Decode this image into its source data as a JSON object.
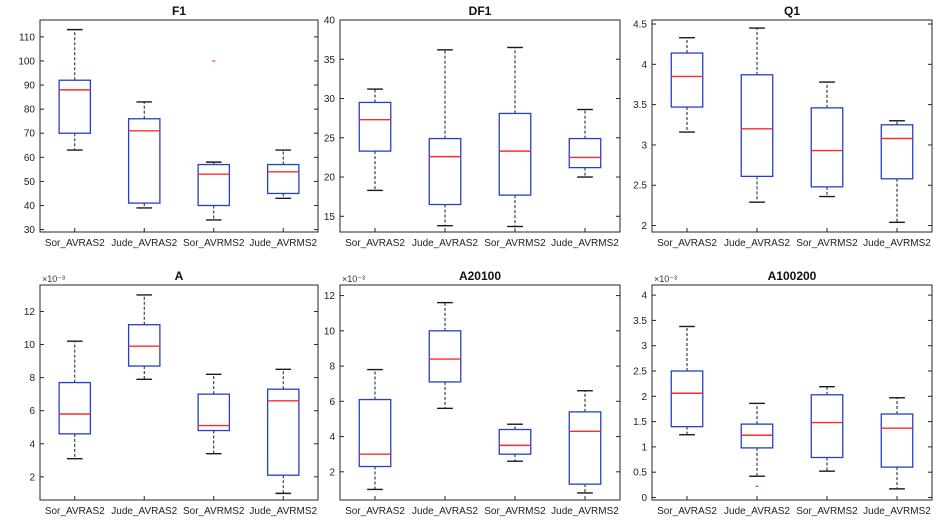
{
  "chart_data": [
    {
      "type": "box",
      "title": "F1",
      "categories": [
        "Sor_AVRAS2",
        "Jude_AVRAS2",
        "Sor_AVRMS2",
        "Jude_AVRMS2"
      ],
      "ylim": [
        29,
        117
      ],
      "yticks": [
        30,
        40,
        50,
        60,
        70,
        80,
        90,
        100,
        110
      ],
      "ytick_labels": [
        "30",
        "40",
        "50",
        "60",
        "70",
        "80",
        "90",
        "100",
        "110"
      ],
      "exponent_label": "",
      "boxes": [
        {
          "min": 63,
          "q1": 70,
          "median": 88,
          "q3": 92,
          "max": 113,
          "outliers": []
        },
        {
          "min": 39,
          "q1": 41,
          "median": 71,
          "q3": 76,
          "max": 83,
          "outliers": []
        },
        {
          "min": 34,
          "q1": 40,
          "median": 53,
          "q3": 57,
          "max": 58,
          "outliers": [
            100
          ]
        },
        {
          "min": 43,
          "q1": 45,
          "median": 54,
          "q3": 57,
          "max": 63,
          "outliers": []
        }
      ]
    },
    {
      "type": "box",
      "title": "DF1",
      "categories": [
        "Sor_AVRAS2",
        "Jude_AVRAS2",
        "Sor_AVRMS2",
        "Jude_AVRMS2"
      ],
      "ylim": [
        13,
        40
      ],
      "yticks": [
        15,
        20,
        25,
        30,
        35,
        40
      ],
      "ytick_labels": [
        "15",
        "20",
        "25",
        "30",
        "35",
        "40"
      ],
      "exponent_label": "",
      "boxes": [
        {
          "min": 18.3,
          "q1": 23.3,
          "median": 27.3,
          "q3": 29.5,
          "max": 31.2,
          "outliers": []
        },
        {
          "min": 13.8,
          "q1": 16.5,
          "median": 22.6,
          "q3": 24.9,
          "max": 36.2,
          "outliers": []
        },
        {
          "min": 13.7,
          "q1": 17.7,
          "median": 23.3,
          "q3": 28.1,
          "max": 36.5,
          "outliers": []
        },
        {
          "min": 20.0,
          "q1": 21.2,
          "median": 22.5,
          "q3": 24.9,
          "max": 28.6,
          "outliers": []
        }
      ]
    },
    {
      "type": "box",
      "title": "Q1",
      "categories": [
        "Sor_AVRAS2",
        "Jude_AVRAS2",
        "Sor_AVRMS2",
        "Jude_AVRMS2"
      ],
      "ylim": [
        1.92,
        4.55
      ],
      "yticks": [
        2,
        2.5,
        3,
        3.5,
        4,
        4.5
      ],
      "ytick_labels": [
        "2",
        "2.5",
        "3",
        "3.5",
        "4",
        "4.5"
      ],
      "exponent_label": "",
      "boxes": [
        {
          "min": 3.16,
          "q1": 3.47,
          "median": 3.85,
          "q3": 4.14,
          "max": 4.33,
          "outliers": []
        },
        {
          "min": 2.29,
          "q1": 2.61,
          "median": 3.2,
          "q3": 3.87,
          "max": 4.45,
          "outliers": []
        },
        {
          "min": 2.36,
          "q1": 2.48,
          "median": 2.93,
          "q3": 3.46,
          "max": 3.78,
          "outliers": []
        },
        {
          "min": 2.04,
          "q1": 2.58,
          "median": 3.08,
          "q3": 3.25,
          "max": 3.3,
          "outliers": []
        }
      ]
    },
    {
      "type": "box",
      "title": "A",
      "categories": [
        "Sor_AVRAS2",
        "Jude_AVRAS2",
        "Sor_AVRMS2",
        "Jude_AVRMS2"
      ],
      "ylim": [
        0.6,
        13.6
      ],
      "yticks": [
        2,
        4,
        6,
        8,
        10,
        12
      ],
      "ytick_labels": [
        "2",
        "4",
        "6",
        "8",
        "10",
        "12"
      ],
      "exponent_label": "×10⁻³",
      "boxes": [
        {
          "min": 3.1,
          "q1": 4.6,
          "median": 5.8,
          "q3": 7.7,
          "max": 10.2,
          "outliers": []
        },
        {
          "min": 7.9,
          "q1": 8.7,
          "median": 9.9,
          "q3": 11.2,
          "max": 13.0,
          "outliers": []
        },
        {
          "min": 3.4,
          "q1": 4.8,
          "median": 5.1,
          "q3": 7.0,
          "max": 8.2,
          "outliers": []
        },
        {
          "min": 1.0,
          "q1": 2.1,
          "median": 6.6,
          "q3": 7.3,
          "max": 8.5,
          "outliers": []
        }
      ]
    },
    {
      "type": "box",
      "title": "A20100",
      "categories": [
        "Sor_AVRAS2",
        "Jude_AVRAS2",
        "Sor_AVRMS2",
        "Jude_AVRMS2"
      ],
      "ylim": [
        0.4,
        12.6
      ],
      "yticks": [
        2,
        4,
        6,
        8,
        10,
        12
      ],
      "ytick_labels": [
        "2",
        "4",
        "6",
        "8",
        "10",
        "12"
      ],
      "exponent_label": "×10⁻³",
      "boxes": [
        {
          "min": 1.0,
          "q1": 2.3,
          "median": 3.0,
          "q3": 6.1,
          "max": 7.8,
          "outliers": []
        },
        {
          "min": 5.6,
          "q1": 7.1,
          "median": 8.4,
          "q3": 10.0,
          "max": 11.6,
          "outliers": []
        },
        {
          "min": 2.6,
          "q1": 3.0,
          "median": 3.5,
          "q3": 4.4,
          "max": 4.7,
          "outliers": []
        },
        {
          "min": 0.8,
          "q1": 1.3,
          "median": 4.3,
          "q3": 5.4,
          "max": 6.6,
          "outliers": []
        }
      ]
    },
    {
      "type": "box",
      "title": "A100200",
      "categories": [
        "Sor_AVRAS2",
        "Jude_AVRAS2",
        "Sor_AVRMS2",
        "Jude_AVRMS2"
      ],
      "ylim": [
        -0.05,
        4.2
      ],
      "yticks": [
        0,
        0.5,
        1,
        1.5,
        2,
        2.5,
        3,
        3.5,
        4
      ],
      "ytick_labels": [
        "0",
        "0.5",
        "1",
        "1.5",
        "2",
        "2.5",
        "3",
        "3.5",
        "4"
      ],
      "exponent_label": "×10⁻³",
      "boxes": [
        {
          "min": 1.24,
          "q1": 1.4,
          "median": 2.06,
          "q3": 2.5,
          "max": 3.38,
          "outliers": []
        },
        {
          "min": 0.42,
          "q1": 0.98,
          "median": 1.23,
          "q3": 1.45,
          "max": 1.86,
          "outliers": [
            0.22
          ]
        },
        {
          "min": 0.52,
          "q1": 0.79,
          "median": 1.48,
          "q3": 2.03,
          "max": 2.19,
          "outliers": []
        },
        {
          "min": 0.17,
          "q1": 0.6,
          "median": 1.37,
          "q3": 1.65,
          "max": 1.97,
          "outliers": []
        }
      ]
    }
  ],
  "colors": {
    "box_edge": "#2440c8",
    "median": "#ff2b2b",
    "whisker": "#1a1a1a",
    "axes": "#262626",
    "outlier": "#ff2b2b"
  }
}
